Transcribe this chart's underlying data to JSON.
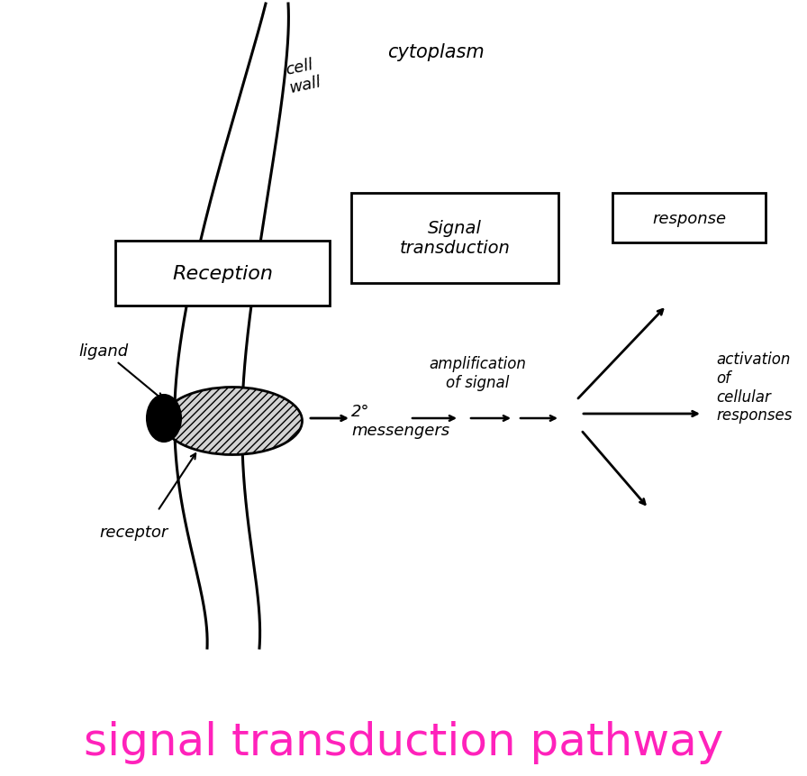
{
  "title": "signal transduction pathway",
  "title_color": "#FF22BB",
  "title_fontsize": 36,
  "bg_color": "#FFFFFF",
  "fig_width": 8.96,
  "fig_height": 8.62,
  "cell_wall_label": "cell\nwall",
  "cytoplasm_label": "cytoplasm",
  "reception_label": "Reception",
  "signal_transduction_label": "Signal\ntransduction",
  "response_label": "response",
  "ligand_label": "ligand",
  "receptor_label": "receptor",
  "second_messengers_label": "2°\nmessengers",
  "amplification_label": "amplification\nof signal",
  "activation_label": "activation\nof\ncellular\nresponses"
}
